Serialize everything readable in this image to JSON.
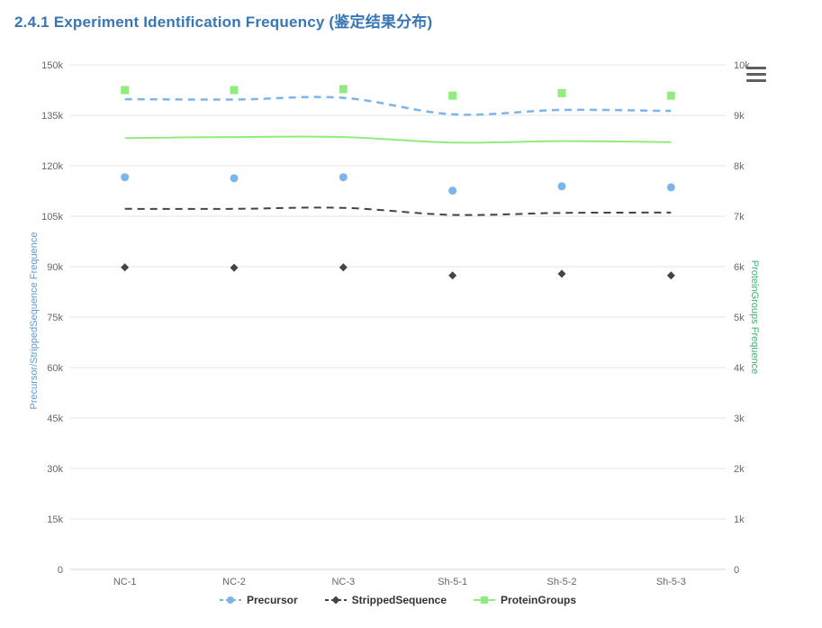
{
  "header": {
    "title": "2.4.1 Experiment Identification Frequency (鉴定结果分布)",
    "title_color": "#3876b4"
  },
  "toolbar": {
    "menu_icon": "hamburger-menu-icon"
  },
  "chart_data": {
    "type": "line",
    "categories": [
      "NC-1",
      "NC-2",
      "NC-3",
      "Sh-5-1",
      "Sh-5-2",
      "Sh-5-3"
    ],
    "left_axis": {
      "title": "Precursor/StrippedSequence Frequence",
      "color": "#5b9bd5",
      "min": 0,
      "max": 150000,
      "tick_interval": 15000,
      "tick_labels": [
        "0",
        "15k",
        "30k",
        "45k",
        "60k",
        "75k",
        "90k",
        "105k",
        "120k",
        "135k",
        "150k"
      ]
    },
    "right_axis": {
      "title": "ProteinGroups Frequence",
      "color": "#3cb371",
      "min": 0,
      "max": 10000,
      "tick_interval": 1000,
      "tick_labels": [
        "0",
        "1k",
        "2k",
        "3k",
        "4k",
        "5k",
        "6k",
        "7k",
        "8k",
        "9k",
        "10k"
      ]
    },
    "grid_color": "#e6e6e6",
    "axis_line_color": "#ccd6eb",
    "tick_label_color": "#666666",
    "legend_position": "bottom-center",
    "series": [
      {
        "name": "Precursor",
        "axis": "left",
        "color": "#7cb5ec",
        "marker": "circle",
        "line_style": "dashed",
        "line_values": [
          139800,
          139700,
          140200,
          135300,
          136600,
          136300
        ],
        "point_values": [
          116600,
          116300,
          116600,
          112600,
          113900,
          113600
        ]
      },
      {
        "name": "StrippedSequence",
        "axis": "left",
        "color": "#434348",
        "marker": "diamond",
        "line_style": "dashed",
        "line_values": [
          107200,
          107200,
          107500,
          105400,
          106000,
          106100
        ],
        "point_values": [
          89800,
          89700,
          89800,
          87400,
          87900,
          87400
        ]
      },
      {
        "name": "ProteinGroups",
        "axis": "right",
        "color": "#90ed7d",
        "marker": "square",
        "line_style": "solid",
        "line_values": [
          8550,
          8570,
          8570,
          8460,
          8490,
          8470
        ],
        "point_values": [
          9500,
          9500,
          9520,
          9390,
          9440,
          9390
        ]
      }
    ]
  }
}
